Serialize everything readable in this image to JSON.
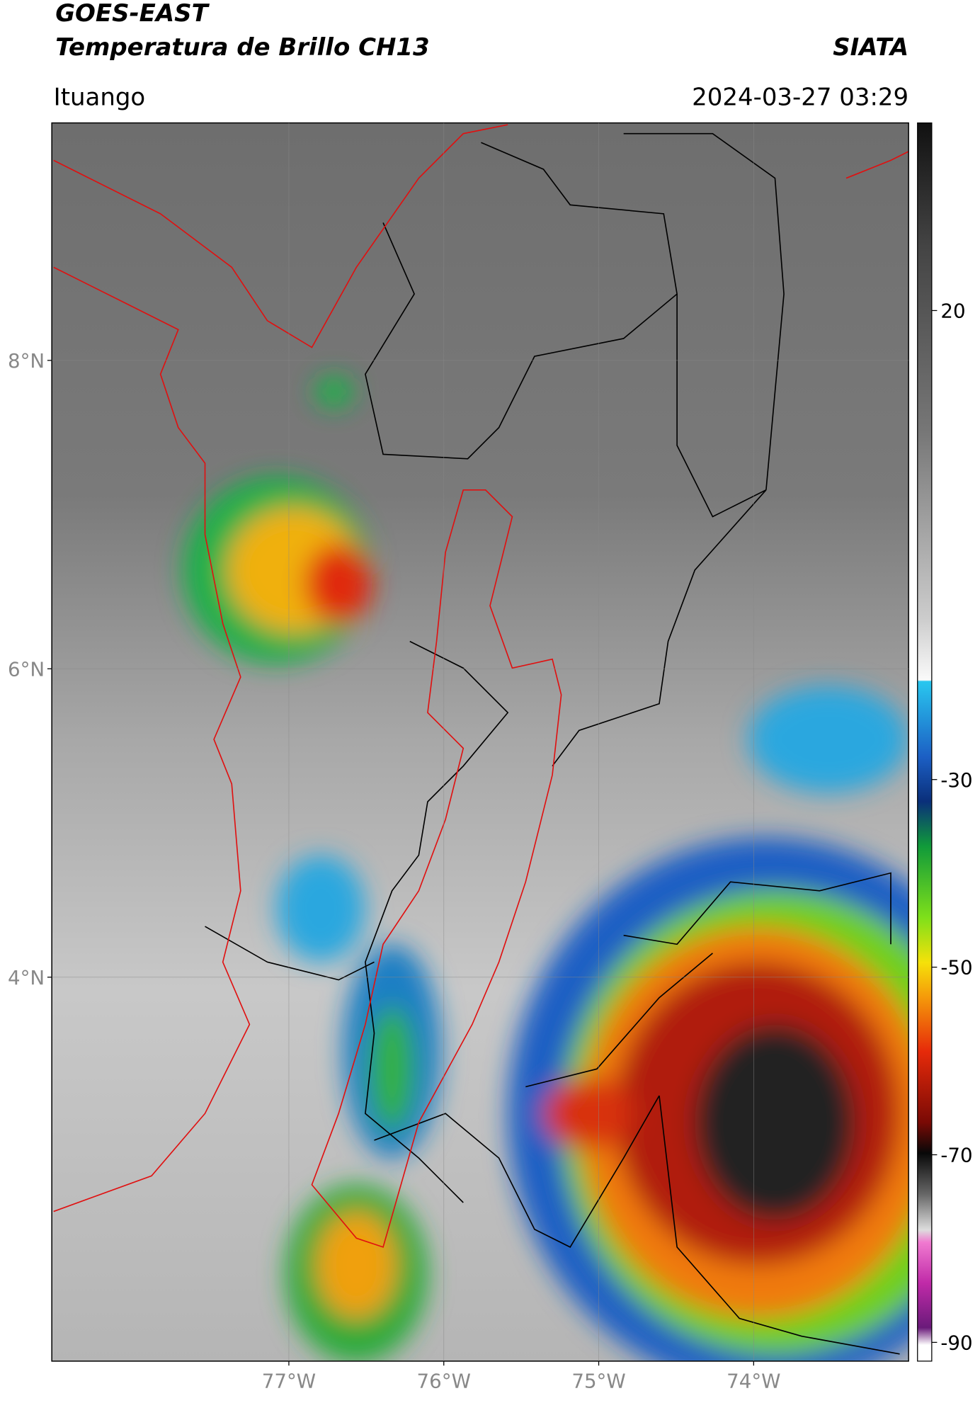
{
  "header": {
    "title": "GOES-EAST",
    "subtitle": "Temperatura de Brillo CH13",
    "organization": "SIATA",
    "location": "Ituango",
    "timestamp": "2024-03-27 03:29"
  },
  "map": {
    "xlim": [
      -78.53,
      -73.0
    ],
    "ylim": [
      1.51,
      9.54
    ],
    "lat_ticks": [
      {
        "value": 8,
        "label": "8°N"
      },
      {
        "value": 6,
        "label": "6°N"
      },
      {
        "value": 4,
        "label": "4°N"
      }
    ],
    "lon_ticks": [
      {
        "value": -77,
        "label": "77°W"
      },
      {
        "value": -76,
        "label": "76°W"
      },
      {
        "value": -75,
        "label": "75°W"
      },
      {
        "value": -74,
        "label": "74°W"
      }
    ]
  },
  "colorbar": {
    "lim": [
      -92,
      40
    ],
    "ticks": [
      20,
      -30,
      -50,
      -70,
      -90
    ]
  }
}
